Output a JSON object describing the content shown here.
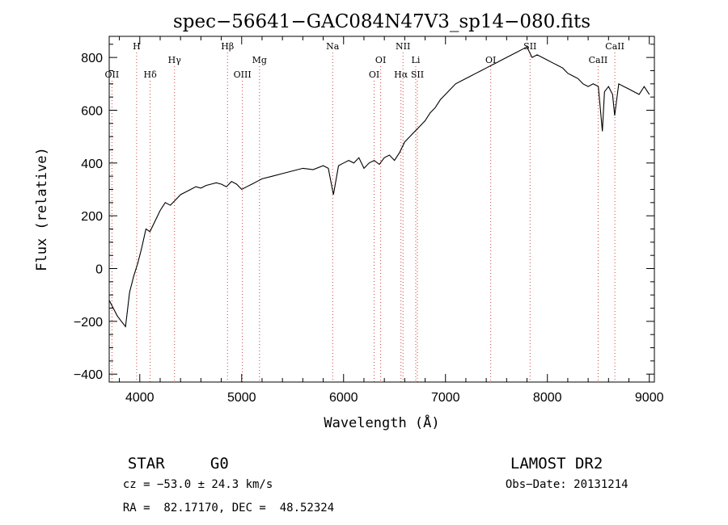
{
  "chart_data": {
    "type": "line",
    "title": "spec−56641−GAC084N47V3_sp14−080.fits",
    "xlabel": "Wavelength (Å)",
    "ylabel": "Flux (relative)",
    "xlim": [
      3700,
      9050
    ],
    "ylim": [
      -430,
      880
    ],
    "xticks": [
      4000,
      5000,
      6000,
      7000,
      8000,
      9000
    ],
    "xtick_labels": [
      "4000",
      "5000",
      "6000",
      "7000",
      "8000",
      "9000"
    ],
    "yticks": [
      -400,
      -200,
      0,
      200,
      400,
      600,
      800
    ],
    "ytick_labels": [
      "−400",
      "−200",
      "0",
      "200",
      "400",
      "600",
      "800"
    ],
    "series": [
      {
        "x": [
          3700,
          3740,
          3780,
          3820,
          3860,
          3900,
          3940,
          3980,
          4020,
          4060,
          4100,
          4150,
          4200,
          4250,
          4300,
          4350,
          4400,
          4450,
          4500,
          4550,
          4600,
          4650,
          4700,
          4750,
          4800,
          4850,
          4900,
          4950,
          5000,
          5050,
          5100,
          5150,
          5200,
          5300,
          5400,
          5500,
          5600,
          5700,
          5800,
          5850,
          5900,
          5950,
          6000,
          6050,
          6100,
          6150,
          6200,
          6250,
          6300,
          6350,
          6400,
          6450,
          6500,
          6550,
          6600,
          6650,
          6700,
          6750,
          6800,
          6850,
          6900,
          6950,
          7000,
          7050,
          7100,
          7150,
          7200,
          7250,
          7300,
          7350,
          7400,
          7450,
          7500,
          7550,
          7600,
          7650,
          7700,
          7750,
          7800,
          7850,
          7900,
          7950,
          8000,
          8050,
          8100,
          8150,
          8200,
          8250,
          8300,
          8350,
          8400,
          8450,
          8500,
          8540,
          8560,
          8600,
          8640,
          8660,
          8700,
          8750,
          8800,
          8850,
          8900,
          8950,
          9000
        ],
        "y": [
          -120,
          -150,
          -180,
          -200,
          -220,
          -90,
          -30,
          20,
          80,
          150,
          140,
          180,
          220,
          250,
          240,
          260,
          280,
          290,
          300,
          310,
          305,
          315,
          320,
          325,
          320,
          310,
          330,
          320,
          300,
          310,
          320,
          330,
          340,
          350,
          360,
          370,
          380,
          375,
          390,
          380,
          280,
          390,
          400,
          410,
          400,
          420,
          380,
          400,
          410,
          395,
          420,
          430,
          410,
          440,
          480,
          500,
          520,
          540,
          560,
          590,
          610,
          640,
          660,
          680,
          700,
          710,
          720,
          730,
          740,
          750,
          760,
          770,
          780,
          790,
          800,
          810,
          820,
          830,
          840,
          800,
          810,
          800,
          790,
          780,
          770,
          760,
          740,
          730,
          720,
          700,
          690,
          700,
          690,
          520,
          670,
          690,
          660,
          580,
          700,
          690,
          680,
          670,
          660,
          690,
          660
        ]
      }
    ],
    "spectral_lines": [
      {
        "name": "OII",
        "x": 3727,
        "row": 2
      },
      {
        "name": "H",
        "x": 3969,
        "row": 0
      },
      {
        "name": "Hδ",
        "x": 4102,
        "row": 2
      },
      {
        "name": "Hγ",
        "x": 4341,
        "row": 1
      },
      {
        "name": "Hβ",
        "x": 4861,
        "row": 0
      },
      {
        "name": "OIII",
        "x": 5007,
        "row": 2
      },
      {
        "name": "Mg",
        "x": 5175,
        "row": 1
      },
      {
        "name": "Na",
        "x": 5893,
        "row": 0
      },
      {
        "name": "OI",
        "x": 6300,
        "row": 2
      },
      {
        "name": "OI",
        "x": 6364,
        "row": 1
      },
      {
        "name": "NII",
        "x": 6583,
        "row": 0
      },
      {
        "name": "Hα",
        "x": 6563,
        "row": 2
      },
      {
        "name": "Li",
        "x": 6708,
        "row": 1
      },
      {
        "name": "SII",
        "x": 6724,
        "row": 2
      },
      {
        "name": "OI",
        "x": 7444,
        "row": 1
      },
      {
        "name": "SII",
        "x": 7830,
        "row": 0
      },
      {
        "name": "CaII",
        "x": 8498,
        "row": 1
      },
      {
        "name": "CaII",
        "x": 8662,
        "row": 0
      }
    ]
  },
  "info": {
    "object_class": "STAR",
    "subclass": "G0",
    "survey": "LAMOST DR2",
    "cz": "cz = −53.0 ± 24.3 km/s",
    "obs_date": "Obs−Date: 20131214",
    "coords": "RA =  82.17170, DEC =  48.52324"
  },
  "colors": {
    "line_marker": "#d04040",
    "spectrum": "#000000"
  }
}
